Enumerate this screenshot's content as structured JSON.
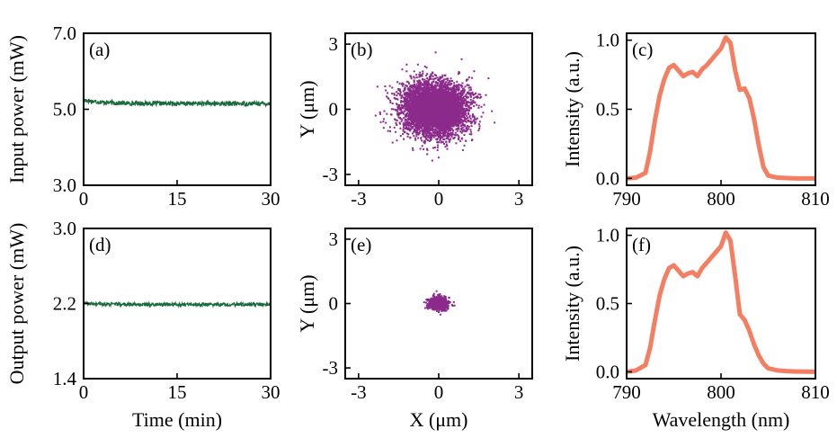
{
  "chart_data": [
    {
      "id": "a",
      "type": "line",
      "panel_label": "(a)",
      "xlabel": "",
      "ylabel": "Input power (mW)",
      "xlim": [
        0,
        30
      ],
      "ylim": [
        3.0,
        7.0
      ],
      "xticks": [
        0,
        15,
        30
      ],
      "xtick_labels": [
        "0",
        "15",
        "30"
      ],
      "yticks": [
        3.0,
        5.0,
        7.0
      ],
      "ytick_labels": [
        "3.0",
        "5.0",
        "7.0"
      ],
      "color": "#1a6b3c",
      "series": [
        {
          "name": "Input power",
          "x_range": [
            0,
            30
          ],
          "mean": 5.15,
          "start_value": 5.25,
          "noise_pp": 0.12
        }
      ]
    },
    {
      "id": "b",
      "type": "scatter",
      "panel_label": "(b)",
      "xlabel": "",
      "ylabel": "Y (μm)",
      "xlim": [
        -3.5,
        3.5
      ],
      "ylim": [
        -3.5,
        3.5
      ],
      "xticks": [
        -3,
        0,
        3
      ],
      "xtick_labels": [
        "-3",
        "0",
        "3"
      ],
      "yticks": [
        -3,
        0,
        3
      ],
      "ytick_labels": [
        "-3",
        "0",
        "3"
      ],
      "color": "#8c2a8c",
      "series": [
        {
          "name": "Beam position",
          "center": [
            -0.15,
            0.0
          ],
          "std_x": 0.62,
          "std_y": 0.62,
          "extent": 2.8
        }
      ]
    },
    {
      "id": "c",
      "type": "line",
      "panel_label": "(c)",
      "xlabel": "",
      "ylabel": "Intensity (a.u.)",
      "xlim": [
        790,
        810
      ],
      "ylim": [
        -0.05,
        1.05
      ],
      "xticks": [
        790,
        800,
        810
      ],
      "xtick_labels": [
        "790",
        "800",
        "810"
      ],
      "yticks": [
        0.0,
        0.5,
        1.0
      ],
      "ytick_labels": [
        "0.0",
        "0.5",
        "1.0"
      ],
      "color": "#f47e62",
      "series": [
        {
          "name": "Input spectrum",
          "x": [
            790,
            791,
            792,
            792.5,
            793,
            793.5,
            794,
            794.5,
            795,
            795.5,
            796,
            796.5,
            797,
            797.5,
            798,
            798.5,
            799,
            799.5,
            800,
            800.5,
            801,
            801.5,
            802,
            802.5,
            803,
            803.5,
            804,
            804.5,
            805,
            806,
            807,
            808,
            810
          ],
          "y": [
            0,
            0.005,
            0.04,
            0.2,
            0.42,
            0.6,
            0.72,
            0.8,
            0.82,
            0.78,
            0.74,
            0.76,
            0.77,
            0.74,
            0.79,
            0.82,
            0.86,
            0.9,
            0.94,
            1.02,
            0.98,
            0.78,
            0.64,
            0.65,
            0.58,
            0.43,
            0.24,
            0.08,
            0.02,
            0.005,
            0.002,
            0,
            0
          ]
        }
      ]
    },
    {
      "id": "d",
      "type": "line",
      "panel_label": "(d)",
      "xlabel": "Time (min)",
      "ylabel": "Output power (mW)",
      "xlim": [
        0,
        30
      ],
      "ylim": [
        1.4,
        3.0
      ],
      "xticks": [
        0,
        15,
        30
      ],
      "xtick_labels": [
        "0",
        "15",
        "30"
      ],
      "yticks": [
        1.4,
        2.2,
        3.0
      ],
      "ytick_labels": [
        "1.4",
        "2.2",
        "3.0"
      ],
      "color": "#1a6b3c",
      "series": [
        {
          "name": "Output power",
          "x_range": [
            0,
            30
          ],
          "mean": 2.19,
          "start_value": 2.2,
          "noise_pp": 0.035
        }
      ]
    },
    {
      "id": "e",
      "type": "scatter",
      "panel_label": "(e)",
      "xlabel": "X (μm)",
      "ylabel": "Y (μm)",
      "xlim": [
        -3.5,
        3.5
      ],
      "ylim": [
        -3.5,
        3.5
      ],
      "xticks": [
        -3,
        0,
        3
      ],
      "xtick_labels": [
        "-3",
        "0",
        "3"
      ],
      "yticks": [
        -3,
        0,
        3
      ],
      "ytick_labels": [
        "-3",
        "0",
        "3"
      ],
      "color": "#8c2a8c",
      "series": [
        {
          "name": "Beam position",
          "center": [
            0.0,
            0.0
          ],
          "std_x": 0.17,
          "std_y": 0.14,
          "extent": 0.6
        }
      ]
    },
    {
      "id": "f",
      "type": "line",
      "panel_label": "(f)",
      "xlabel": "Wavelength (nm)",
      "ylabel": "Intensity (a.u.)",
      "xlim": [
        790,
        810
      ],
      "ylim": [
        -0.05,
        1.05
      ],
      "xticks": [
        790,
        800,
        810
      ],
      "xtick_labels": [
        "790",
        "800",
        "810"
      ],
      "yticks": [
        0.0,
        0.5,
        1.0
      ],
      "ytick_labels": [
        "0.0",
        "0.5",
        "1.0"
      ],
      "color": "#f47e62",
      "series": [
        {
          "name": "Output spectrum",
          "x": [
            790,
            791,
            792,
            792.5,
            793,
            793.5,
            794,
            794.5,
            795,
            795.5,
            796,
            796.5,
            797,
            797.5,
            798,
            798.5,
            799,
            799.5,
            800,
            800.5,
            801,
            801.5,
            802,
            802.5,
            803,
            803.5,
            804,
            804.5,
            805,
            806,
            807,
            808,
            810
          ],
          "y": [
            0,
            0.01,
            0.05,
            0.18,
            0.38,
            0.56,
            0.68,
            0.76,
            0.78,
            0.74,
            0.7,
            0.72,
            0.73,
            0.7,
            0.76,
            0.8,
            0.84,
            0.88,
            0.92,
            1.02,
            0.96,
            0.7,
            0.42,
            0.38,
            0.3,
            0.2,
            0.12,
            0.06,
            0.025,
            0.01,
            0.005,
            0.002,
            0
          ]
        }
      ]
    }
  ]
}
